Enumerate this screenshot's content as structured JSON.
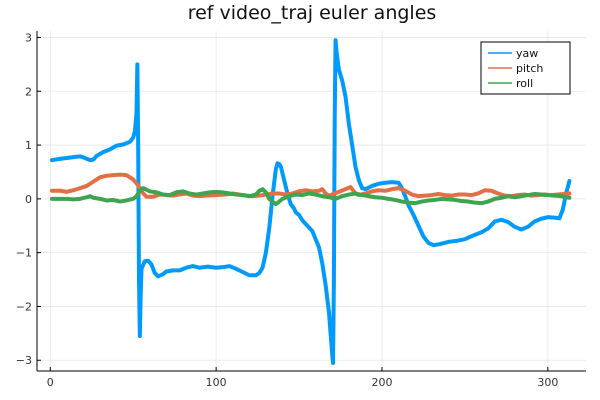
{
  "chart_data": {
    "type": "line",
    "title": "ref video_traj euler angles",
    "xlabel": "",
    "ylabel": "",
    "xlim": [
      -8,
      323
    ],
    "ylim": [
      -3.2,
      3.12
    ],
    "xticks": [
      0,
      100,
      200,
      300
    ],
    "yticks": [
      -3,
      -2,
      -1,
      0,
      1,
      2,
      3
    ],
    "grid": true,
    "legend_position": "top-right",
    "series": [
      {
        "name": "yaw",
        "color": "#009AFA",
        "points": [
          [
            1,
            0.72
          ],
          [
            5,
            0.74
          ],
          [
            10,
            0.76
          ],
          [
            15,
            0.78
          ],
          [
            18,
            0.79
          ],
          [
            20,
            0.77
          ],
          [
            24,
            0.72
          ],
          [
            26,
            0.73
          ],
          [
            28,
            0.8
          ],
          [
            32,
            0.87
          ],
          [
            36,
            0.92
          ],
          [
            40,
            0.99
          ],
          [
            44,
            1.01
          ],
          [
            48,
            1.06
          ],
          [
            50,
            1.14
          ],
          [
            51,
            1.25
          ],
          [
            52,
            1.6
          ],
          [
            52.5,
            2.5
          ],
          [
            53,
            1.0
          ],
          [
            53.5,
            -1.5
          ],
          [
            54,
            -2.55
          ],
          [
            54.5,
            -1.8
          ],
          [
            55,
            -1.3
          ],
          [
            57,
            -1.16
          ],
          [
            59,
            -1.15
          ],
          [
            61,
            -1.22
          ],
          [
            63,
            -1.38
          ],
          [
            65,
            -1.44
          ],
          [
            68,
            -1.4
          ],
          [
            70,
            -1.35
          ],
          [
            74,
            -1.33
          ],
          [
            78,
            -1.33
          ],
          [
            82,
            -1.28
          ],
          [
            86,
            -1.25
          ],
          [
            90,
            -1.28
          ],
          [
            95,
            -1.26
          ],
          [
            100,
            -1.28
          ],
          [
            104,
            -1.27
          ],
          [
            108,
            -1.25
          ],
          [
            112,
            -1.3
          ],
          [
            116,
            -1.36
          ],
          [
            120,
            -1.42
          ],
          [
            124,
            -1.42
          ],
          [
            126,
            -1.38
          ],
          [
            128,
            -1.28
          ],
          [
            130,
            -1.0
          ],
          [
            132,
            -0.55
          ],
          [
            134,
            0.05
          ],
          [
            136,
            0.55
          ],
          [
            137,
            0.66
          ],
          [
            138,
            0.65
          ],
          [
            139,
            0.6
          ],
          [
            141,
            0.35
          ],
          [
            143,
            0.1
          ],
          [
            145,
            -0.1
          ],
          [
            147,
            -0.18
          ],
          [
            148,
            -0.25
          ],
          [
            150,
            -0.3
          ],
          [
            152,
            -0.4
          ],
          [
            155,
            -0.5
          ],
          [
            158,
            -0.6
          ],
          [
            160,
            -0.75
          ],
          [
            162,
            -0.9
          ],
          [
            164,
            -1.2
          ],
          [
            166,
            -1.6
          ],
          [
            168,
            -2.1
          ],
          [
            169,
            -2.5
          ],
          [
            170,
            -2.9
          ],
          [
            170.5,
            -3.05
          ],
          [
            171,
            -1.5
          ],
          [
            171.5,
            1.5
          ],
          [
            172,
            2.95
          ],
          [
            172.5,
            2.75
          ],
          [
            174,
            2.4
          ],
          [
            176,
            2.2
          ],
          [
            178,
            1.9
          ],
          [
            180,
            1.4
          ],
          [
            182,
            1.0
          ],
          [
            184,
            0.6
          ],
          [
            186,
            0.35
          ],
          [
            188,
            0.2
          ],
          [
            190,
            0.18
          ],
          [
            194,
            0.24
          ],
          [
            198,
            0.28
          ],
          [
            202,
            0.3
          ],
          [
            206,
            0.31
          ],
          [
            210,
            0.3
          ],
          [
            212,
            0.2
          ],
          [
            214,
            0.05
          ],
          [
            216,
            -0.12
          ],
          [
            219,
            -0.3
          ],
          [
            222,
            -0.5
          ],
          [
            225,
            -0.7
          ],
          [
            228,
            -0.82
          ],
          [
            231,
            -0.86
          ],
          [
            235,
            -0.84
          ],
          [
            240,
            -0.8
          ],
          [
            245,
            -0.78
          ],
          [
            250,
            -0.75
          ],
          [
            255,
            -0.68
          ],
          [
            260,
            -0.62
          ],
          [
            264,
            -0.55
          ],
          [
            268,
            -0.42
          ],
          [
            272,
            -0.39
          ],
          [
            276,
            -0.43
          ],
          [
            280,
            -0.52
          ],
          [
            284,
            -0.57
          ],
          [
            288,
            -0.52
          ],
          [
            292,
            -0.42
          ],
          [
            296,
            -0.37
          ],
          [
            300,
            -0.34
          ],
          [
            304,
            -0.35
          ],
          [
            307,
            -0.36
          ],
          [
            309,
            -0.2
          ],
          [
            311,
            0.1
          ],
          [
            313,
            0.33
          ]
        ]
      },
      {
        "name": "pitch",
        "color": "#E26F46",
        "points": [
          [
            1,
            0.15
          ],
          [
            6,
            0.15
          ],
          [
            10,
            0.13
          ],
          [
            14,
            0.16
          ],
          [
            18,
            0.2
          ],
          [
            22,
            0.24
          ],
          [
            26,
            0.32
          ],
          [
            30,
            0.4
          ],
          [
            34,
            0.43
          ],
          [
            38,
            0.44
          ],
          [
            42,
            0.45
          ],
          [
            46,
            0.44
          ],
          [
            50,
            0.36
          ],
          [
            53,
            0.25
          ],
          [
            56,
            0.1
          ],
          [
            58,
            0.04
          ],
          [
            62,
            0.04
          ],
          [
            66,
            0.08
          ],
          [
            70,
            0.07
          ],
          [
            74,
            0.06
          ],
          [
            78,
            0.08
          ],
          [
            82,
            0.1
          ],
          [
            86,
            0.06
          ],
          [
            90,
            0.05
          ],
          [
            94,
            0.06
          ],
          [
            100,
            0.07
          ],
          [
            106,
            0.08
          ],
          [
            110,
            0.1
          ],
          [
            114,
            0.08
          ],
          [
            118,
            0.06
          ],
          [
            122,
            0.05
          ],
          [
            126,
            0.06
          ],
          [
            130,
            0.08
          ],
          [
            134,
            0.1
          ],
          [
            138,
            0.1
          ],
          [
            142,
            0.08
          ],
          [
            146,
            0.1
          ],
          [
            150,
            0.14
          ],
          [
            154,
            0.16
          ],
          [
            158,
            0.14
          ],
          [
            162,
            0.15
          ],
          [
            164,
            0.18
          ],
          [
            166,
            0.1
          ],
          [
            168,
            0.06
          ],
          [
            170,
            0.08
          ],
          [
            174,
            0.13
          ],
          [
            178,
            0.18
          ],
          [
            181,
            0.22
          ],
          [
            184,
            0.1
          ],
          [
            186,
            0.07
          ],
          [
            190,
            0.1
          ],
          [
            194,
            0.14
          ],
          [
            198,
            0.16
          ],
          [
            202,
            0.15
          ],
          [
            206,
            0.18
          ],
          [
            210,
            0.2
          ],
          [
            214,
            0.15
          ],
          [
            218,
            0.08
          ],
          [
            222,
            0.05
          ],
          [
            226,
            0.06
          ],
          [
            230,
            0.07
          ],
          [
            234,
            0.09
          ],
          [
            238,
            0.07
          ],
          [
            242,
            0.06
          ],
          [
            246,
            0.08
          ],
          [
            250,
            0.08
          ],
          [
            254,
            0.07
          ],
          [
            258,
            0.1
          ],
          [
            262,
            0.16
          ],
          [
            266,
            0.15
          ],
          [
            270,
            0.1
          ],
          [
            274,
            0.06
          ],
          [
            278,
            0.05
          ],
          [
            282,
            0.07
          ],
          [
            286,
            0.08
          ],
          [
            290,
            0.06
          ],
          [
            294,
            0.07
          ],
          [
            298,
            0.08
          ],
          [
            302,
            0.07
          ],
          [
            306,
            0.08
          ],
          [
            310,
            0.09
          ],
          [
            313,
            0.1
          ]
        ]
      },
      {
        "name": "roll",
        "color": "#3EA44E",
        "points": [
          [
            1,
            0.0
          ],
          [
            6,
            0.0
          ],
          [
            10,
            0.0
          ],
          [
            14,
            -0.01
          ],
          [
            18,
            0.0
          ],
          [
            22,
            0.03
          ],
          [
            24,
            0.05
          ],
          [
            26,
            0.02
          ],
          [
            30,
            0.0
          ],
          [
            34,
            -0.03
          ],
          [
            38,
            -0.02
          ],
          [
            42,
            -0.05
          ],
          [
            46,
            -0.03
          ],
          [
            50,
            0.0
          ],
          [
            52,
            0.05
          ],
          [
            54,
            0.15
          ],
          [
            56,
            0.2
          ],
          [
            58,
            0.17
          ],
          [
            60,
            0.14
          ],
          [
            64,
            0.12
          ],
          [
            68,
            0.08
          ],
          [
            72,
            0.07
          ],
          [
            76,
            0.12
          ],
          [
            80,
            0.14
          ],
          [
            84,
            0.1
          ],
          [
            88,
            0.08
          ],
          [
            92,
            0.1
          ],
          [
            96,
            0.12
          ],
          [
            100,
            0.13
          ],
          [
            104,
            0.12
          ],
          [
            108,
            0.1
          ],
          [
            112,
            0.08
          ],
          [
            116,
            0.07
          ],
          [
            120,
            0.05
          ],
          [
            124,
            0.08
          ],
          [
            126,
            0.15
          ],
          [
            128,
            0.18
          ],
          [
            130,
            0.12
          ],
          [
            132,
            0.0
          ],
          [
            134,
            -0.05
          ],
          [
            136,
            -0.1
          ],
          [
            138,
            -0.05
          ],
          [
            140,
            0.0
          ],
          [
            144,
            0.05
          ],
          [
            148,
            0.08
          ],
          [
            152,
            0.07
          ],
          [
            156,
            0.1
          ],
          [
            160,
            0.08
          ],
          [
            164,
            0.05
          ],
          [
            168,
            0.03
          ],
          [
            172,
            0.0
          ],
          [
            176,
            0.05
          ],
          [
            180,
            0.08
          ],
          [
            184,
            0.1
          ],
          [
            188,
            0.07
          ],
          [
            192,
            0.05
          ],
          [
            196,
            0.03
          ],
          [
            200,
            0.02
          ],
          [
            204,
            0.0
          ],
          [
            208,
            -0.02
          ],
          [
            212,
            -0.05
          ],
          [
            216,
            -0.07
          ],
          [
            220,
            -0.08
          ],
          [
            224,
            -0.05
          ],
          [
            228,
            -0.03
          ],
          [
            232,
            -0.02
          ],
          [
            236,
            0.0
          ],
          [
            240,
            -0.01
          ],
          [
            244,
            -0.02
          ],
          [
            248,
            -0.04
          ],
          [
            252,
            -0.05
          ],
          [
            256,
            -0.07
          ],
          [
            260,
            -0.08
          ],
          [
            264,
            -0.05
          ],
          [
            268,
            0.0
          ],
          [
            272,
            0.02
          ],
          [
            276,
            0.05
          ],
          [
            280,
            0.03
          ],
          [
            284,
            0.05
          ],
          [
            288,
            0.07
          ],
          [
            292,
            0.09
          ],
          [
            296,
            0.08
          ],
          [
            300,
            0.07
          ],
          [
            304,
            0.06
          ],
          [
            308,
            0.05
          ],
          [
            311,
            0.03
          ],
          [
            313,
            0.02
          ]
        ]
      }
    ]
  }
}
